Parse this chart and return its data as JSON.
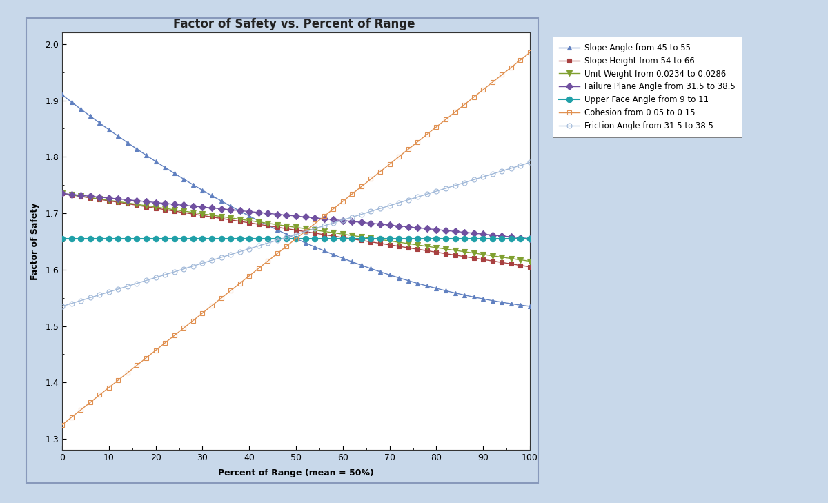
{
  "title": "Factor of Safety vs. Percent of Range",
  "xlabel": "Percent of Range (mean = 50%)",
  "ylabel": "Factor of Safety",
  "xlim": [
    0,
    100
  ],
  "ylim": [
    1.28,
    2.02
  ],
  "yticks": [
    1.3,
    1.4,
    1.5,
    1.6,
    1.7,
    1.8,
    1.9,
    2.0
  ],
  "xticks": [
    0,
    10,
    20,
    30,
    40,
    50,
    60,
    70,
    80,
    90,
    100
  ],
  "background_color": "#c8d8ea",
  "plot_bg_color": "#ffffff",
  "series": [
    {
      "label": "Slope Angle from 45 to 55",
      "color": "#6080c0",
      "marker": "^",
      "markersize": 5,
      "linewidth": 1.0,
      "markerfacecolor": "#6080c0",
      "markeredgecolor": "#6080c0",
      "open_marker": false,
      "start": 1.91,
      "end": 1.535,
      "type": "decreasing_curved"
    },
    {
      "label": "Slope Height from 54 to 66",
      "color": "#a84040",
      "marker": "s",
      "markersize": 5,
      "linewidth": 1.0,
      "markerfacecolor": "#a84040",
      "markeredgecolor": "#a84040",
      "open_marker": false,
      "start": 1.735,
      "end": 1.605,
      "type": "linear_decreasing"
    },
    {
      "label": "Unit Weight from 0.0234 to 0.0286",
      "color": "#80a030",
      "marker": "v",
      "markersize": 6,
      "linewidth": 1.0,
      "markerfacecolor": "#80a030",
      "markeredgecolor": "#80a030",
      "open_marker": false,
      "start": 1.735,
      "end": 1.615,
      "type": "linear_decreasing"
    },
    {
      "label": "Failure Plane Angle from 31.5 to 38.5",
      "color": "#7050a0",
      "marker": "D",
      "markersize": 5,
      "linewidth": 1.0,
      "markerfacecolor": "#7050a0",
      "markeredgecolor": "#7050a0",
      "open_marker": false,
      "start": 1.735,
      "end": 1.655,
      "type": "linear_decreasing"
    },
    {
      "label": "Upper Face Angle from 9 to 11",
      "color": "#20a0a8",
      "marker": "o",
      "markersize": 6,
      "linewidth": 1.5,
      "markerfacecolor": "#20a0a8",
      "markeredgecolor": "#20a0a8",
      "open_marker": false,
      "start": 1.655,
      "end": 1.66,
      "type": "flat"
    },
    {
      "label": "Cohesion from 0.05 to 0.15",
      "color": "#e09050",
      "marker": "s",
      "markersize": 5,
      "linewidth": 1.0,
      "markerfacecolor": "none",
      "markeredgecolor": "#e09050",
      "open_marker": true,
      "start": 1.325,
      "end": 1.985,
      "type": "linear_increasing"
    },
    {
      "label": "Friction Angle from 31.5 to 38.5",
      "color": "#a0b8d8",
      "marker": "o",
      "markersize": 5,
      "linewidth": 1.0,
      "markerfacecolor": "none",
      "markeredgecolor": "#a0b8d8",
      "open_marker": true,
      "start": 1.535,
      "end": 1.79,
      "type": "linear_increasing"
    }
  ]
}
